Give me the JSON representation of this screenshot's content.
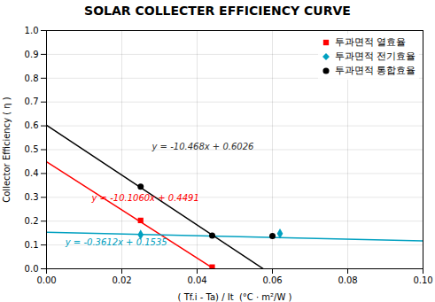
{
  "chart_data": {
    "type": "scatter",
    "title": "SOLAR COLLECTER EFFICIENCY CURVE",
    "xlabel": "( Tf.i - Ta) / It  (°C · m²/W )",
    "ylabel": "Collector Efficiency ( η )",
    "xlim": [
      0.0,
      0.1
    ],
    "ylim": [
      0.0,
      1.0
    ],
    "xticks": [
      {
        "value": 0.0,
        "label": "0.00"
      },
      0.02,
      0.04,
      0.06,
      0.08,
      {
        "value": 0.1,
        "label": "0.10"
      }
    ],
    "yticks": [
      {
        "value": 0.0,
        "label": "0.0"
      },
      0.1,
      0.2,
      0.3,
      0.4,
      0.5,
      0.6,
      0.7,
      0.8,
      0.9,
      {
        "value": 1.0,
        "label": "1.0"
      }
    ],
    "grid": true,
    "legend": "upper right",
    "series": [
      {
        "type": "line",
        "color": "#ff0000",
        "x": [
          0.0,
          0.0444
        ],
        "values": [
          0.4491,
          0.0003936
        ]
      },
      {
        "name": "투과면적 열효율",
        "type": "scatter",
        "color": "#ff0000",
        "marker": "square",
        "x": [
          0.025,
          0.044
        ],
        "values": [
          0.203,
          0.007
        ]
      },
      {
        "type": "line",
        "color": "#00a0c0",
        "x": [
          0.0,
          0.1
        ],
        "values": [
          0.1535,
          0.11738
        ]
      },
      {
        "name": "투과면적 전기효율",
        "type": "scatter",
        "color": "#00a0c0",
        "marker": "diamond",
        "x": [
          0.025,
          0.062
        ],
        "values": [
          0.143,
          0.148
        ]
      },
      {
        "type": "line",
        "color": "#000000",
        "x": [
          0.0,
          0.0575
        ],
        "values": [
          0.6026,
          0.00069
        ]
      },
      {
        "name": "투과면적 통합효율",
        "type": "scatter",
        "color": "#000000",
        "marker": "circle",
        "x": [
          0.025,
          0.044,
          0.06
        ],
        "values": [
          0.345,
          0.139,
          0.138
        ]
      }
    ],
    "annotations": [
      {
        "text": "y = -10.1060x + 0.4491",
        "x": 0.012,
        "y": 0.285,
        "color": "#ff0000"
      },
      {
        "text": "y = -0.3612x + 0.1535",
        "x": 0.005,
        "y": 0.098,
        "color": "#00a0c0"
      },
      {
        "text": "y = -10.468x + 0.6026",
        "x": 0.028,
        "y": 0.5,
        "color": "#333333"
      }
    ]
  }
}
